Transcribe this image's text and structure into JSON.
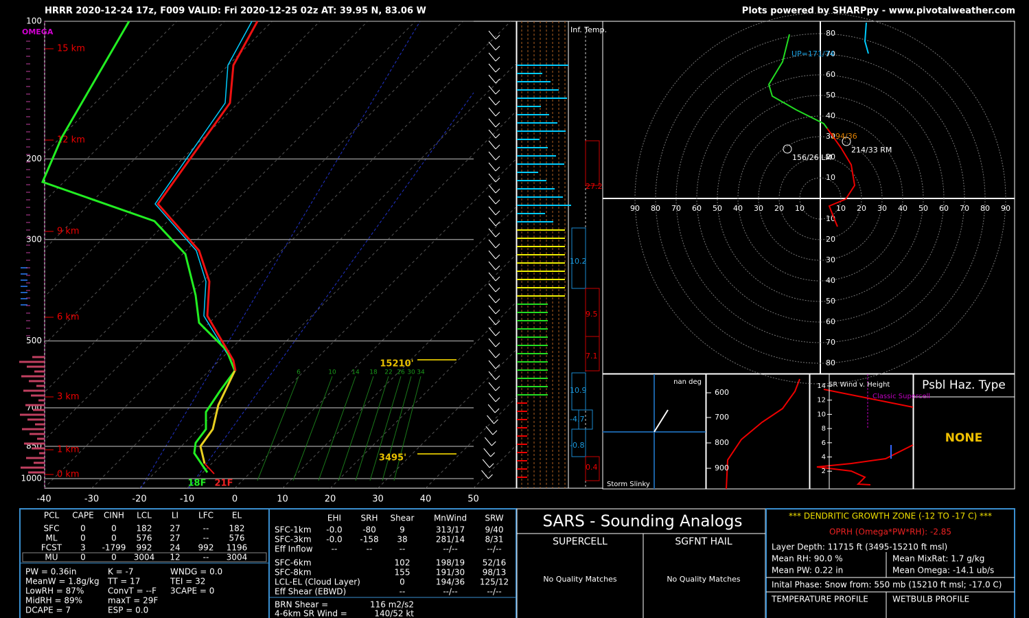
{
  "header": {
    "left": "HRRR 2020-12-24 17z, F009  VALID: Fri 2020-12-25 02z  AT: 39.95 N, 83.06 W",
    "right": "Plots powered by SHARPpy - www.pivotalweather.com"
  },
  "skewt": {
    "omega_label": "OMEGA",
    "pressures": [
      100,
      200,
      300,
      500,
      700,
      850,
      1000
    ],
    "heights": [
      "15 km",
      "12 km",
      "9 km",
      "6 km",
      "3 km",
      "1 km",
      "0 km"
    ],
    "temps": [
      -40,
      -30,
      -20,
      -10,
      0,
      10,
      20,
      30,
      40,
      50
    ],
    "mixing_ratios": [
      6,
      10,
      14,
      18,
      22,
      26,
      30,
      34
    ],
    "dgz_top": "15210'",
    "dgz_bottom": "3495'",
    "sfc_td": "18F",
    "sfc_t": "21F"
  },
  "inferred_temp": {
    "label": "Inf. Temp.",
    "values": [
      "27.2",
      "10.2",
      "9.5",
      "7.1",
      "10.9",
      "-4.7",
      "-0.8",
      "0.4"
    ]
  },
  "hodograph": {
    "rings": [
      10,
      20,
      30,
      40,
      50,
      60,
      70,
      80,
      90
    ],
    "up": "UP=171/74",
    "mean": "194/36",
    "rm": "214/33 RM",
    "lm": "156/26 LM"
  },
  "slinky": {
    "deg": "nan deg",
    "label": "Storm Slinky"
  },
  "theta_e": {
    "pressures": [
      600,
      700,
      800,
      900
    ]
  },
  "sr_wind": {
    "title": "SR Wind v. Height",
    "supercell": "Classic Supercell",
    "heights": [
      14,
      12,
      10,
      8,
      6,
      4,
      2
    ]
  },
  "hazard": {
    "title": "Psbl Haz. Type",
    "value": "NONE"
  },
  "thermo": {
    "header": [
      "PCL",
      "CAPE",
      "CINH",
      "LCL",
      "LI",
      "LFC",
      "EL"
    ],
    "rows": [
      [
        "SFC",
        "0",
        "0",
        "182",
        "27",
        "--",
        "182"
      ],
      [
        "ML",
        "0",
        "0",
        "576",
        "27",
        "--",
        "576"
      ],
      [
        "FCST",
        "3",
        "-1799",
        "992",
        "24",
        "992",
        "1196"
      ],
      [
        "MU",
        "0",
        "0",
        "3004",
        "12",
        "--",
        "3004"
      ]
    ],
    "indices": [
      [
        "PW = 0.36in",
        "K = -7",
        "WNDG = 0.0"
      ],
      [
        "MeanW = 1.8g/kg",
        "TT = 17",
        "TEI = 32"
      ],
      [
        "LowRH = 87%",
        "ConvT = --F",
        "3CAPE = 0"
      ],
      [
        "MidRH = 89%",
        "maxT = 29F"
      ],
      [
        "DCAPE = 7",
        "ESP = 0.0"
      ]
    ]
  },
  "kinematic": {
    "header": [
      "EHI",
      "SRH",
      "Shear",
      "MnWind",
      "SRW"
    ],
    "rows": [
      {
        "label": "SFC-1km",
        "values": [
          "-0.0",
          "-80",
          "9",
          "313/17",
          "9/40"
        ]
      },
      {
        "label": "SFC-3km",
        "values": [
          "-0.0",
          "-158",
          "38",
          "281/14",
          "8/31"
        ]
      },
      {
        "label": "Eff Inflow",
        "values": [
          "--",
          "--",
          "--",
          "--/--",
          "--/--"
        ]
      },
      {
        "label": "SFC-6km",
        "values": [
          "102",
          "198/19",
          "52/16"
        ]
      },
      {
        "label": "SFC-8km",
        "values": [
          "155",
          "191/30",
          "98/13"
        ]
      },
      {
        "label": "LCL-EL (Cloud Layer)",
        "values": [
          "0",
          "194/36",
          "125/12"
        ]
      },
      {
        "label": "Eff Shear (EBWD)",
        "values": [
          "--",
          "--/--",
          "--/--"
        ]
      }
    ],
    "brn_label": "BRN Shear =",
    "brn_value": "116 m2/s2",
    "sr_label": "4-6km SR Wind =",
    "sr_value": "140/52 kt"
  },
  "sars": {
    "title": "SARS - Sounding Analogs",
    "supercell": "SUPERCELL",
    "hail": "SGFNT HAIL",
    "supercell_result": "No Quality Matches",
    "hail_result": "No Quality Matches"
  },
  "dgz": {
    "title": "*** DENDRITIC GROWTH ZONE (-12 TO -17 C) ***",
    "oprh": "OPRH (Omega*PW*RH): -2.85",
    "depth": "Layer Depth: 11715 ft (3495-15210 ft msl)",
    "rh": "Mean RH: 90.0 %",
    "mixrat": "Mean MixRat: 1.7 g/kg",
    "pw": "Mean PW: 0.22 in",
    "omega": "Mean Omega: -14.1 ub/s",
    "phase": "Inital Phase: Snow from: 550 mb (15210 ft msl; -17.0 C)",
    "temp_profile": "TEMPERATURE PROFILE",
    "wetbulb_profile": "WETBULB PROFILE"
  }
}
